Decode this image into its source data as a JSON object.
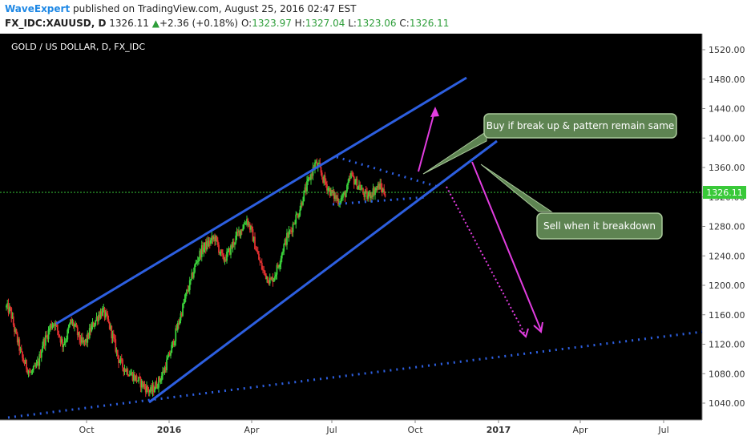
{
  "header": {
    "author": "WaveExpert",
    "published_text": " published on TradingView.com, August 25, 2016 02:47 EST",
    "symbol": "FX_IDC:XAUUSD, D",
    "last": "1326.11",
    "change": "+2.36 (+0.18%)",
    "o_label": "O:",
    "o_value": "1323.97",
    "h_label": "H:",
    "h_value": "1327.04",
    "l_label": "L:",
    "l_value": "1323.06",
    "c_label": "C:",
    "c_value": "1326.11"
  },
  "chart_data": {
    "type": "candlestick",
    "title": "GOLD / US DOLLAR, D, FX_IDC",
    "ylim": [
      1020,
      1540
    ],
    "y_ticks": [
      "1520.00",
      "1480.00",
      "1440.00",
      "1400.00",
      "1360.00",
      "1320.00",
      "1280.00",
      "1240.00",
      "1200.00",
      "1160.00",
      "1120.00",
      "1080.00",
      "1040.00"
    ],
    "x_ticks": [
      "Oct",
      "2016",
      "Apr",
      "Jul",
      "Oct",
      "2017",
      "Apr",
      "Jul"
    ],
    "last_price_label": "1326.11",
    "last_price": 1326.11,
    "annotations": [
      "Buy if break up & pattern remain same",
      "Sell when it breakdown"
    ],
    "price_path": [
      [
        0,
        1170
      ],
      [
        4,
        1165
      ],
      [
        8,
        1140
      ],
      [
        12,
        1120
      ],
      [
        16,
        1100
      ],
      [
        20,
        1090
      ],
      [
        24,
        1080
      ],
      [
        28,
        1085
      ],
      [
        32,
        1095
      ],
      [
        36,
        1120
      ],
      [
        40,
        1130
      ],
      [
        44,
        1145
      ],
      [
        48,
        1150
      ],
      [
        52,
        1135
      ],
      [
        56,
        1120
      ],
      [
        60,
        1130
      ],
      [
        64,
        1150
      ],
      [
        68,
        1145
      ],
      [
        72,
        1130
      ],
      [
        76,
        1120
      ],
      [
        80,
        1125
      ],
      [
        84,
        1140
      ],
      [
        88,
        1150
      ],
      [
        92,
        1160
      ],
      [
        96,
        1165
      ],
      [
        100,
        1155
      ],
      [
        104,
        1140
      ],
      [
        108,
        1120
      ],
      [
        112,
        1100
      ],
      [
        116,
        1090
      ],
      [
        120,
        1085
      ],
      [
        124,
        1080
      ],
      [
        128,
        1075
      ],
      [
        132,
        1070
      ],
      [
        136,
        1065
      ],
      [
        140,
        1060
      ],
      [
        144,
        1055
      ],
      [
        148,
        1062
      ],
      [
        152,
        1070
      ],
      [
        156,
        1080
      ],
      [
        160,
        1095
      ],
      [
        164,
        1110
      ],
      [
        168,
        1130
      ],
      [
        172,
        1150
      ],
      [
        176,
        1170
      ],
      [
        180,
        1190
      ],
      [
        184,
        1205
      ],
      [
        188,
        1225
      ],
      [
        192,
        1240
      ],
      [
        196,
        1250
      ],
      [
        200,
        1255
      ],
      [
        204,
        1260
      ],
      [
        208,
        1265
      ],
      [
        212,
        1250
      ],
      [
        216,
        1235
      ],
      [
        220,
        1240
      ],
      [
        224,
        1250
      ],
      [
        228,
        1262
      ],
      [
        232,
        1272
      ],
      [
        236,
        1280
      ],
      [
        240,
        1290
      ],
      [
        244,
        1275
      ],
      [
        248,
        1255
      ],
      [
        252,
        1235
      ],
      [
        256,
        1220
      ],
      [
        260,
        1212
      ],
      [
        264,
        1205
      ],
      [
        268,
        1215
      ],
      [
        272,
        1230
      ],
      [
        276,
        1250
      ],
      [
        280,
        1265
      ],
      [
        284,
        1275
      ],
      [
        288,
        1290
      ],
      [
        292,
        1300
      ],
      [
        296,
        1320
      ],
      [
        300,
        1335
      ],
      [
        304,
        1350
      ],
      [
        308,
        1365
      ],
      [
        312,
        1360
      ],
      [
        316,
        1345
      ],
      [
        320,
        1335
      ],
      [
        324,
        1325
      ],
      [
        328,
        1320
      ],
      [
        332,
        1315
      ],
      [
        336,
        1320
      ],
      [
        340,
        1330
      ],
      [
        344,
        1350
      ],
      [
        348,
        1340
      ],
      [
        352,
        1335
      ],
      [
        356,
        1325
      ],
      [
        360,
        1320
      ],
      [
        364,
        1325
      ],
      [
        368,
        1330
      ],
      [
        372,
        1335
      ],
      [
        376,
        1328
      ],
      [
        378,
        1326
      ]
    ]
  }
}
